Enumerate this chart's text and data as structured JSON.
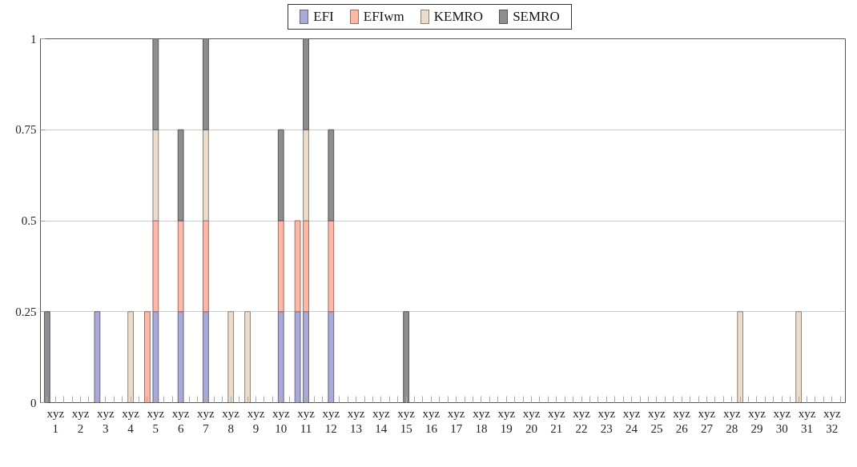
{
  "chart_data": {
    "type": "bar",
    "stacked": true,
    "categories": [
      null,
      "xyz\n1",
      null,
      null,
      "xyz\n2",
      null,
      null,
      "xyz\n3",
      null,
      null,
      "xyz\n4",
      null,
      null,
      "xyz\n5",
      null,
      null,
      "xyz\n6",
      null,
      null,
      "xyz\n7",
      null,
      null,
      "xyz\n8",
      null,
      null,
      "xyz\n9",
      null,
      null,
      "xyz\n10",
      null,
      null,
      "xyz\n11",
      null,
      null,
      "xyz\n12",
      null,
      null,
      "xyz\n13",
      null,
      null,
      "xyz\n14",
      null,
      null,
      "xyz\n15",
      null,
      null,
      "xyz\n16",
      null,
      null,
      "xyz\n17",
      null,
      null,
      "xyz\n18",
      null,
      null,
      "xyz\n19",
      null,
      null,
      "xyz\n20",
      null,
      null,
      "xyz\n21",
      null,
      null,
      "xyz\n22",
      null,
      null,
      "xyz\n23",
      null,
      null,
      "xyz\n24",
      null,
      null,
      "xyz\n25",
      null,
      null,
      "xyz\n26",
      null,
      null,
      "xyz\n27",
      null,
      null,
      "xyz\n28",
      null,
      null,
      "xyz\n29",
      null,
      null,
      "xyz\n30",
      null,
      null,
      "xyz\n31",
      null,
      null,
      "xyz\n32",
      null
    ],
    "series": [
      {
        "name": "EFI",
        "color": "#aaaad8",
        "values": [
          0,
          0,
          0,
          0,
          0,
          0,
          0.25,
          0,
          0,
          0,
          0,
          0,
          0,
          0.25,
          0,
          0,
          0.25,
          0,
          0,
          0.25,
          0,
          0,
          0,
          0,
          0,
          0,
          0,
          0,
          0.25,
          0,
          0.25,
          0.25,
          0,
          0,
          0.25,
          0,
          0,
          0,
          0,
          0,
          0,
          0,
          0,
          0,
          0,
          0,
          0,
          0,
          0,
          0,
          0,
          0,
          0,
          0,
          0,
          0,
          0,
          0,
          0,
          0,
          0,
          0,
          0,
          0,
          0,
          0,
          0,
          0,
          0,
          0,
          0,
          0,
          0,
          0,
          0,
          0,
          0,
          0,
          0,
          0,
          0,
          0,
          0,
          0,
          0,
          0,
          0,
          0,
          0,
          0,
          0,
          0,
          0,
          0,
          0,
          0
        ]
      },
      {
        "name": "EFIwm",
        "color": "#ffb8a8",
        "values": [
          0,
          0,
          0,
          0,
          0,
          0,
          0,
          0,
          0,
          0,
          0,
          0,
          0.25,
          0.25,
          0,
          0,
          0.25,
          0,
          0,
          0.25,
          0,
          0,
          0,
          0,
          0,
          0,
          0,
          0,
          0.25,
          0,
          0.25,
          0.25,
          0,
          0,
          0.25,
          0,
          0,
          0,
          0,
          0,
          0,
          0,
          0,
          0,
          0,
          0,
          0,
          0,
          0,
          0,
          0,
          0,
          0,
          0,
          0,
          0,
          0,
          0,
          0,
          0,
          0,
          0,
          0,
          0,
          0,
          0,
          0,
          0,
          0,
          0,
          0,
          0,
          0,
          0,
          0,
          0,
          0,
          0,
          0,
          0,
          0,
          0,
          0,
          0,
          0,
          0,
          0,
          0,
          0,
          0,
          0,
          0,
          0,
          0,
          0,
          0
        ]
      },
      {
        "name": "KEMRO",
        "color": "#ecdccb",
        "values": [
          0,
          0,
          0,
          0,
          0,
          0,
          0,
          0,
          0,
          0,
          0.25,
          0,
          0,
          0.25,
          0,
          0,
          0,
          0,
          0,
          0.25,
          0,
          0,
          0.25,
          0,
          0.25,
          0,
          0,
          0,
          0,
          0,
          0,
          0.25,
          0,
          0,
          0,
          0,
          0,
          0,
          0,
          0,
          0,
          0,
          0,
          0,
          0,
          0,
          0,
          0,
          0,
          0,
          0,
          0,
          0,
          0,
          0,
          0,
          0,
          0,
          0,
          0,
          0,
          0,
          0,
          0,
          0,
          0,
          0,
          0,
          0,
          0,
          0,
          0,
          0,
          0,
          0,
          0,
          0,
          0,
          0,
          0,
          0,
          0,
          0,
          0.25,
          0,
          0,
          0,
          0,
          0,
          0,
          0.25,
          0,
          0,
          0,
          0,
          0
        ]
      },
      {
        "name": "SEMRO",
        "color": "#8e8e92",
        "values": [
          0.25,
          0,
          0,
          0,
          0,
          0,
          0,
          0,
          0,
          0,
          0,
          0,
          0,
          0.25,
          0,
          0,
          0.25,
          0,
          0,
          0.25,
          0,
          0,
          0,
          0,
          0,
          0,
          0,
          0,
          0.25,
          0,
          0,
          0.25,
          0,
          0,
          0.25,
          0,
          0,
          0,
          0,
          0,
          0,
          0,
          0,
          0.25,
          0,
          0,
          0,
          0,
          0,
          0,
          0,
          0,
          0,
          0,
          0,
          0,
          0,
          0,
          0,
          0,
          0,
          0,
          0,
          0,
          0,
          0,
          0,
          0,
          0,
          0,
          0,
          0,
          0,
          0,
          0,
          0,
          0,
          0,
          0,
          0,
          0,
          0,
          0,
          0,
          0,
          0,
          0,
          0,
          0,
          0,
          0,
          0,
          0,
          0,
          0,
          0
        ]
      }
    ],
    "ylim": [
      0,
      1
    ],
    "yticks": [
      0,
      0.25,
      0.5,
      0.75,
      1
    ],
    "grid": "y",
    "legend": "top"
  }
}
